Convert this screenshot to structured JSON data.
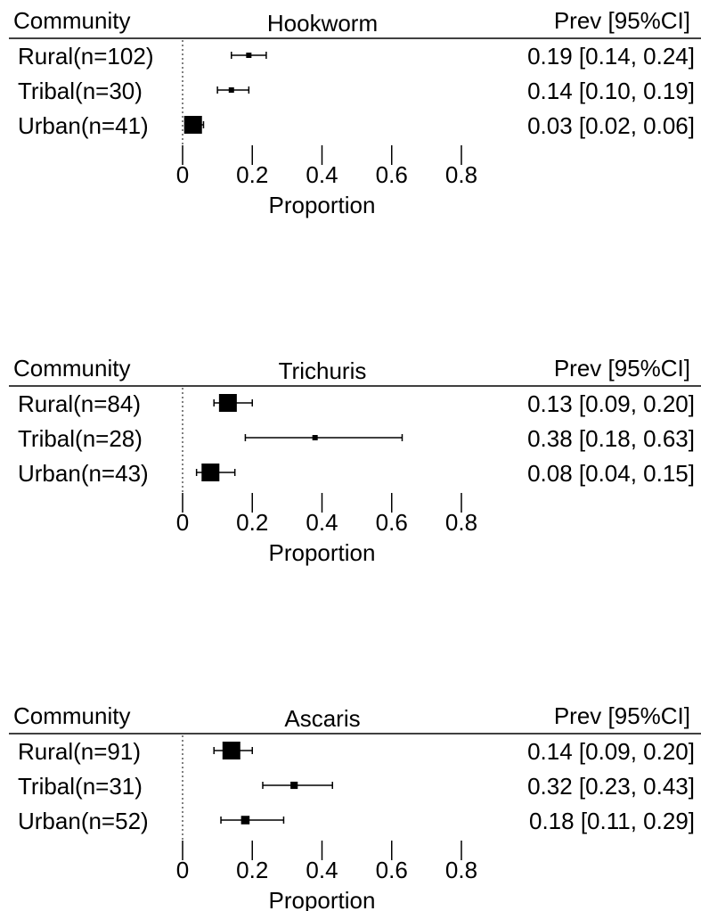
{
  "chart_data": [
    {
      "type": "forest",
      "title": "Hookworm",
      "group_header": "Community",
      "value_header": "Prev [95%CI]",
      "categories": [
        "Rural(n=102)",
        "Tribal(n=30)",
        "Urban(n=41)"
      ],
      "values": [
        0.19,
        0.14,
        0.03
      ],
      "lower": [
        0.14,
        0.1,
        0.02
      ],
      "upper": [
        0.24,
        0.19,
        0.06
      ],
      "value_labels": [
        "0.19 [0.14, 0.24]",
        "0.14 [0.10, 0.19]",
        "0.03 [0.02, 0.06]"
      ],
      "color": "#000000",
      "xlim": [
        0,
        0.8
      ],
      "xticks": [
        0,
        0.2,
        0.4,
        0.6,
        0.8
      ],
      "xlabel": "Proportion"
    },
    {
      "type": "forest",
      "title": "Trichuris",
      "group_header": "Community",
      "value_header": "Prev [95%CI]",
      "categories": [
        "Rural(n=84)",
        "Tribal(n=28)",
        "Urban(n=43)"
      ],
      "values": [
        0.13,
        0.38,
        0.08
      ],
      "lower": [
        0.09,
        0.18,
        0.04
      ],
      "upper": [
        0.2,
        0.63,
        0.15
      ],
      "value_labels": [
        "0.13 [0.09, 0.20]",
        "0.38 [0.18, 0.63]",
        "0.08 [0.04, 0.15]"
      ],
      "color": "#000000",
      "xlim": [
        0,
        0.8
      ],
      "xticks": [
        0,
        0.2,
        0.4,
        0.6,
        0.8
      ],
      "xlabel": "Proportion"
    },
    {
      "type": "forest",
      "title": "Ascaris",
      "group_header": "Community",
      "value_header": "Prev [95%CI]",
      "categories": [
        "Rural(n=91)",
        "Tribal(n=31)",
        "Urban(n=52)"
      ],
      "values": [
        0.14,
        0.32,
        0.18
      ],
      "lower": [
        0.09,
        0.23,
        0.11
      ],
      "upper": [
        0.2,
        0.43,
        0.29
      ],
      "value_labels": [
        "0.14 [0.09, 0.20]",
        "0.32 [0.23, 0.43]",
        "0.18 [0.11, 0.29]"
      ],
      "color": "#000000",
      "xlim": [
        0,
        0.8
      ],
      "xticks": [
        0,
        0.2,
        0.4,
        0.6,
        0.8
      ],
      "xlabel": "Proportion"
    }
  ]
}
